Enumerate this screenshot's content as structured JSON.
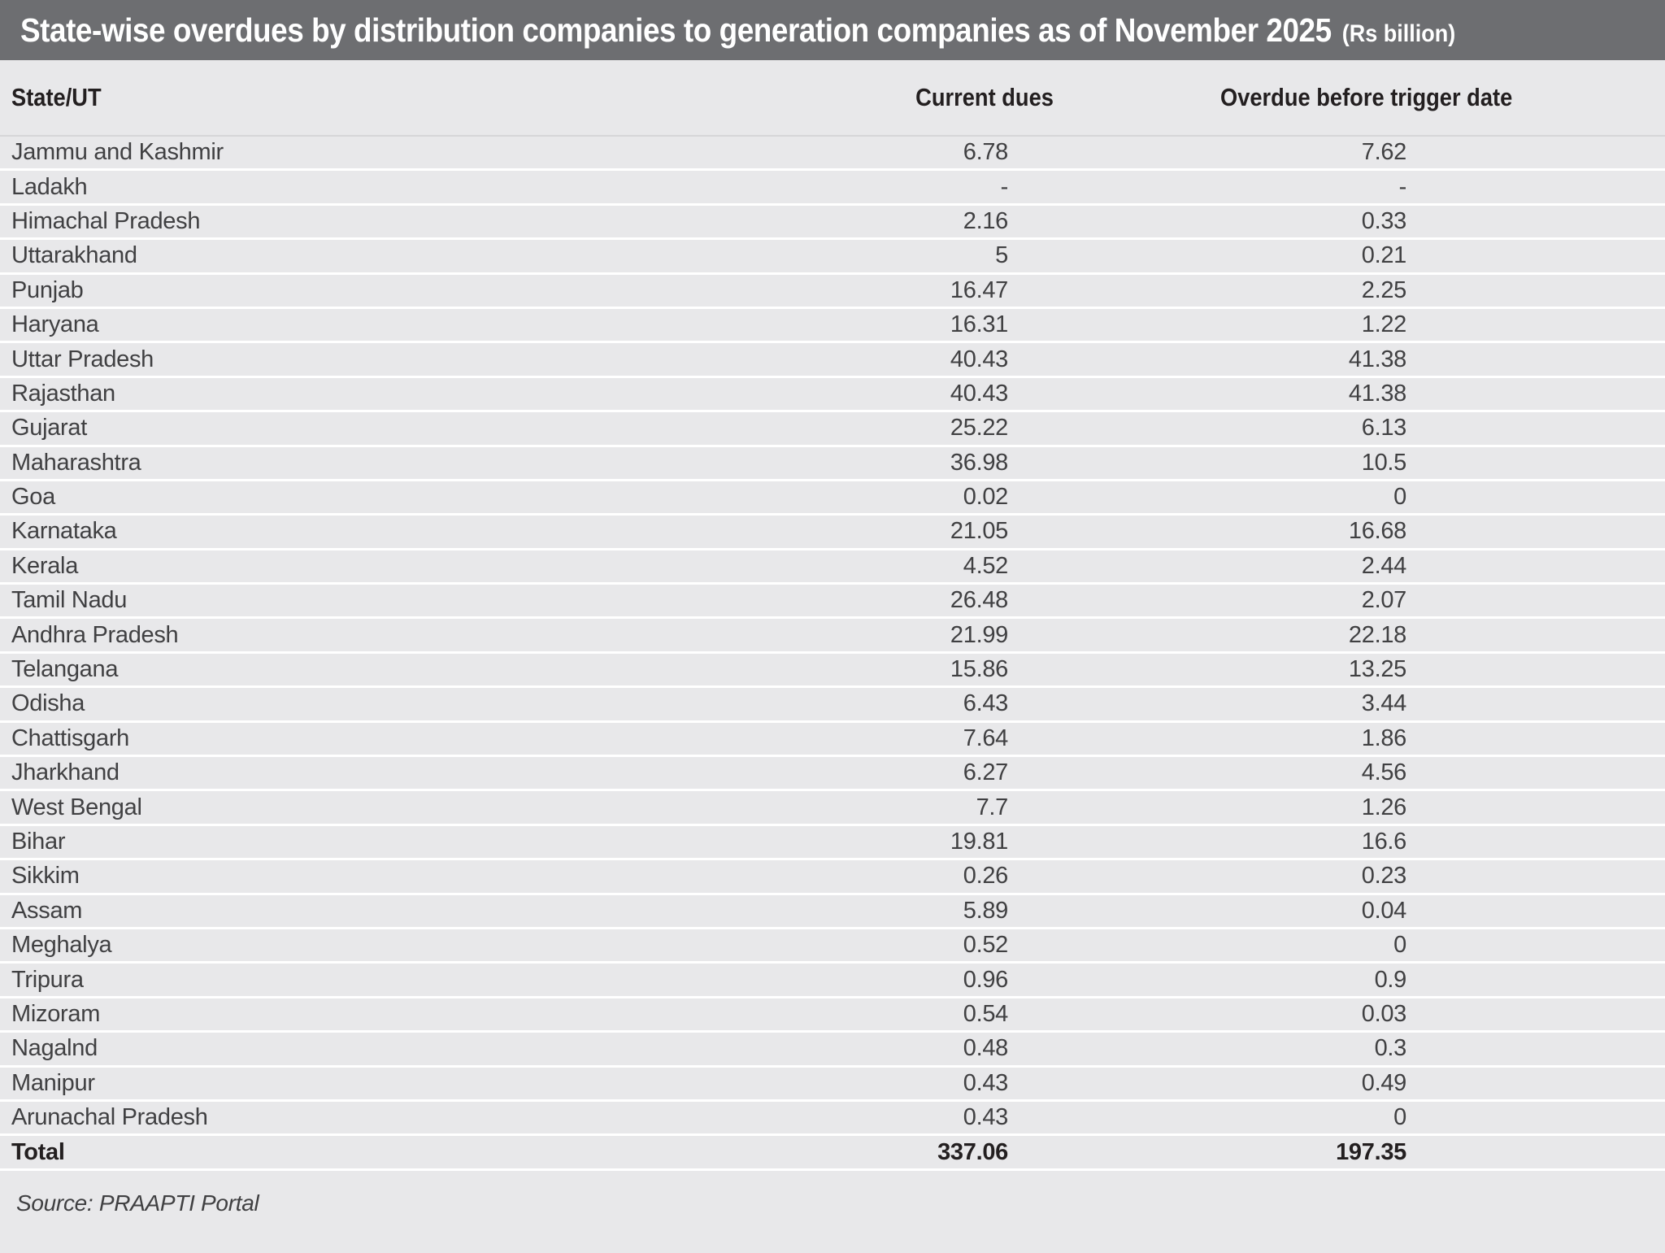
{
  "title": {
    "main": "State-wise overdues by distribution companies to generation companies as of November 2025",
    "unit": "(Rs billion)"
  },
  "chart_data": {
    "type": "table",
    "title": "State-wise overdues by distribution companies to generation companies as of November 2025 (Rs billion)",
    "columns": [
      "State/UT",
      "Current dues",
      "Overdue before trigger date"
    ],
    "rows": [
      [
        "Jammu and Kashmir",
        "6.78",
        "7.62"
      ],
      [
        "Ladakh",
        "-",
        "-"
      ],
      [
        "Himachal Pradesh",
        "2.16",
        "0.33"
      ],
      [
        "Uttarakhand",
        "5",
        "0.21"
      ],
      [
        "Punjab",
        "16.47",
        "2.25"
      ],
      [
        "Haryana",
        "16.31",
        "1.22"
      ],
      [
        "Uttar Pradesh",
        "40.43",
        "41.38"
      ],
      [
        "Rajasthan",
        "40.43",
        "41.38"
      ],
      [
        "Gujarat",
        "25.22",
        "6.13"
      ],
      [
        "Maharashtra",
        "36.98",
        "10.5"
      ],
      [
        "Goa",
        "0.02",
        "0"
      ],
      [
        "Karnataka",
        "21.05",
        "16.68"
      ],
      [
        "Kerala",
        "4.52",
        "2.44"
      ],
      [
        "Tamil Nadu",
        "26.48",
        "2.07"
      ],
      [
        "Andhra Pradesh",
        "21.99",
        "22.18"
      ],
      [
        "Telangana",
        "15.86",
        "13.25"
      ],
      [
        "Odisha",
        "6.43",
        "3.44"
      ],
      [
        "Chattisgarh",
        "7.64",
        "1.86"
      ],
      [
        "Jharkhand",
        "6.27",
        "4.56"
      ],
      [
        "West Bengal",
        "7.7",
        "1.26"
      ],
      [
        "Bihar",
        "19.81",
        "16.6"
      ],
      [
        "Sikkim",
        "0.26",
        "0.23"
      ],
      [
        "Assam",
        "5.89",
        "0.04"
      ],
      [
        "Meghalya",
        "0.52",
        "0"
      ],
      [
        "Tripura",
        "0.96",
        "0.9"
      ],
      [
        "Mizoram",
        "0.54",
        "0.03"
      ],
      [
        "Nagalnd",
        "0.48",
        "0.3"
      ],
      [
        "Manipur",
        "0.43",
        "0.49"
      ],
      [
        "Arunachal Pradesh",
        "0.43",
        "0"
      ]
    ],
    "total": [
      "Total",
      "337.06",
      "197.35"
    ]
  },
  "source": "Source: PRAAPTI Portal",
  "colors": {
    "title_bar_bg": "#6d6e71",
    "title_text": "#ffffff",
    "page_bg": "#e8e8ea",
    "separator": "#ffffff",
    "header_rule": "#d6d6d8",
    "text_dark": "#231f20",
    "text_body": "#404042"
  }
}
